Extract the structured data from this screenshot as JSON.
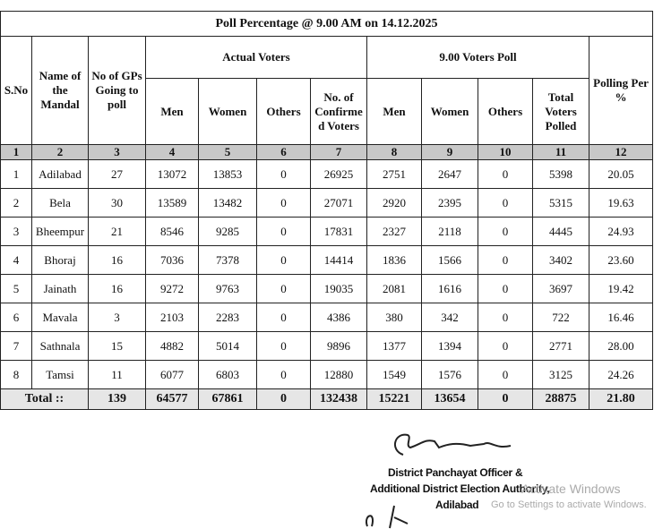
{
  "title": "Poll Percentage @ 9.00 AM on 14.12.2025",
  "headers": {
    "sno": "S.No",
    "mandal": "Name of the Mandal",
    "gps": "No of GPs Going to poll",
    "actual": "Actual Voters",
    "poll": "9.00 Voters Poll",
    "pct": "Polling Per %",
    "men": "Men",
    "women": "Women",
    "others": "Others",
    "confirmed": "No. of Confirme d Voters",
    "men2": "Men",
    "women2": "Women",
    "others2": "Others",
    "total": "Total Voters Polled"
  },
  "index": [
    "1",
    "2",
    "3",
    "4",
    "5",
    "6",
    "7",
    "8",
    "9",
    "10",
    "11",
    "12"
  ],
  "rows": [
    [
      "1",
      "Adilabad",
      "27",
      "13072",
      "13853",
      "0",
      "26925",
      "2751",
      "2647",
      "0",
      "5398",
      "20.05"
    ],
    [
      "2",
      "Bela",
      "30",
      "13589",
      "13482",
      "0",
      "27071",
      "2920",
      "2395",
      "0",
      "5315",
      "19.63"
    ],
    [
      "3",
      "Bheempur",
      "21",
      "8546",
      "9285",
      "0",
      "17831",
      "2327",
      "2118",
      "0",
      "4445",
      "24.93"
    ],
    [
      "4",
      "Bhoraj",
      "16",
      "7036",
      "7378",
      "0",
      "14414",
      "1836",
      "1566",
      "0",
      "3402",
      "23.60"
    ],
    [
      "5",
      "Jainath",
      "16",
      "9272",
      "9763",
      "0",
      "19035",
      "2081",
      "1616",
      "0",
      "3697",
      "19.42"
    ],
    [
      "6",
      "Mavala",
      "3",
      "2103",
      "2283",
      "0",
      "4386",
      "380",
      "342",
      "0",
      "722",
      "16.46"
    ],
    [
      "7",
      "Sathnala",
      "15",
      "4882",
      "5014",
      "0",
      "9896",
      "1377",
      "1394",
      "0",
      "2771",
      "28.00"
    ],
    [
      "8",
      "Tamsi",
      "11",
      "6077",
      "6803",
      "0",
      "12880",
      "1549",
      "1576",
      "0",
      "3125",
      "24.26"
    ]
  ],
  "total": [
    "Total ::",
    "139",
    "64577",
    "67861",
    "0",
    "132438",
    "15221",
    "13654",
    "0",
    "28875",
    "21.80"
  ],
  "footer": {
    "line1": "District Panchayat Officer &",
    "line2": "Additional District Election Authority,",
    "line3": "Adilabad"
  },
  "watermark": {
    "title": "Activate Windows",
    "subtitle": "Go to Settings to activate Windows."
  }
}
